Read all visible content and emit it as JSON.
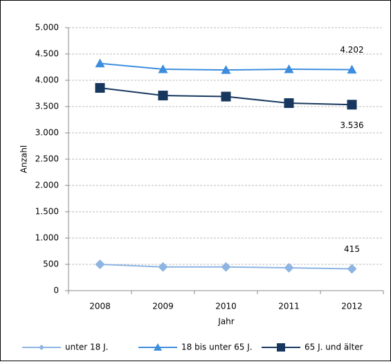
{
  "chart_data": {
    "type": "line",
    "categories": [
      "2008",
      "2009",
      "2010",
      "2011",
      "2012"
    ],
    "x_label": "Jahr",
    "y_label": "Anzahl",
    "ylim": [
      0,
      5000
    ],
    "yticks": [
      0,
      500,
      {
        "value": 1000,
        "label": "1.000"
      },
      {
        "value": 1500,
        "label": "1.500"
      },
      {
        "value": 2000,
        "label": "2.000"
      },
      {
        "value": 2500,
        "label": "2.500"
      },
      {
        "value": 3000,
        "label": "3.000"
      },
      {
        "value": 3500,
        "label": "3.500"
      },
      {
        "value": 4000,
        "label": "4.000"
      },
      {
        "value": 4500,
        "label": "4.500"
      },
      {
        "value": 5000,
        "label": "5.000"
      }
    ],
    "grid": true,
    "legend": "bottom",
    "series": [
      {
        "name": "unter 18 J.",
        "color": "#8db4e2",
        "marker": "diamond",
        "values": [
          500,
          450,
          450,
          435,
          415
        ],
        "value_labels": [
          null,
          null,
          null,
          null,
          "415"
        ]
      },
      {
        "name": "18 bis unter 65 J.",
        "color": "#3c8dde",
        "marker": "triangle",
        "values": [
          4320,
          4210,
          4195,
          4210,
          4202
        ],
        "value_labels": [
          null,
          null,
          null,
          null,
          "4.202"
        ]
      },
      {
        "name": "65 J. und älter",
        "color": "#17375e",
        "marker": "square",
        "values": [
          3855,
          3710,
          3690,
          3566,
          3536
        ],
        "value_labels": [
          null,
          null,
          null,
          null,
          "3.536"
        ]
      }
    ]
  }
}
